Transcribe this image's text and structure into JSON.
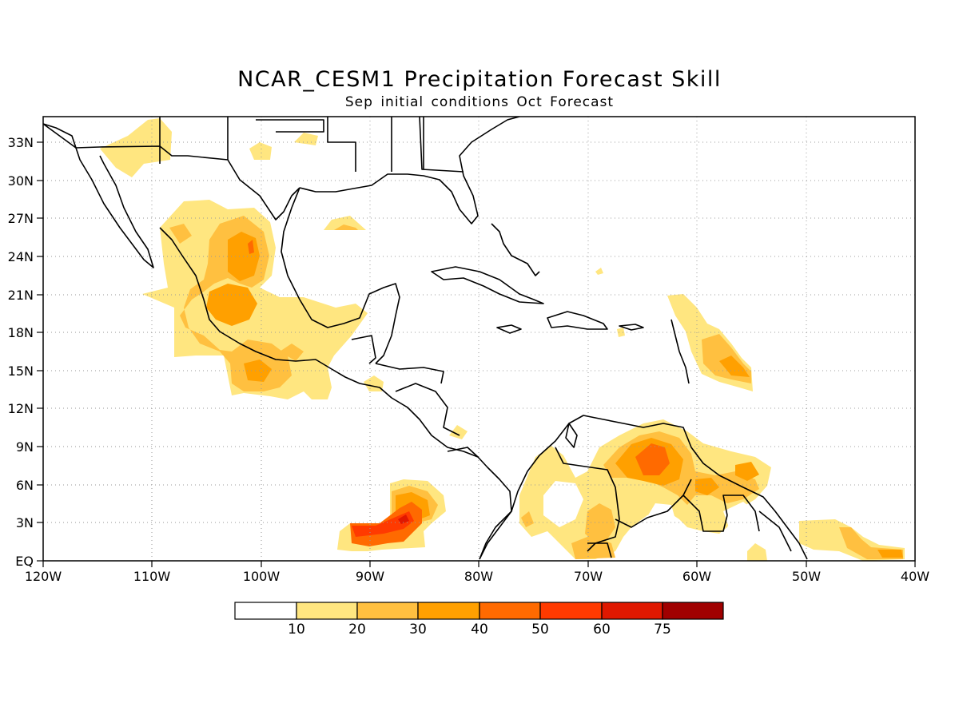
{
  "title": "NCAR_CESM1 Precipitation Forecast Skill",
  "subtitle": "Sep initial conditions  Oct Forecast",
  "map": {
    "lon_range": [
      -120,
      -40
    ],
    "lat_range": [
      0,
      35
    ],
    "x_tick_labels": [
      "120W",
      "110W",
      "100W",
      "90W",
      "80W",
      "70W",
      "60W",
      "50W",
      "40W"
    ],
    "y_tick_labels": [
      "EQ",
      "3N",
      "6N",
      "9N",
      "12N",
      "15N",
      "18N",
      "21N",
      "24N",
      "27N",
      "30N",
      "33N"
    ],
    "grid": "dotted"
  },
  "colorbar": {
    "labels": [
      "10",
      "20",
      "30",
      "40",
      "50",
      "60",
      "75"
    ],
    "colors": [
      "#ffffff",
      "#ffe680",
      "#ffc040",
      "#ffa000",
      "#ff6a00",
      "#ff3a00",
      "#e01800",
      "#a00000"
    ]
  },
  "skill_levels": {
    "lt10": "#ffffff",
    "10-20": "#ffe680",
    "20-30": "#ffc040",
    "30-40": "#ffa000",
    "40-50": "#ff6a00",
    "50-60": "#ff3a00",
    "60-75": "#e01800",
    "gt75": "#a00000"
  }
}
